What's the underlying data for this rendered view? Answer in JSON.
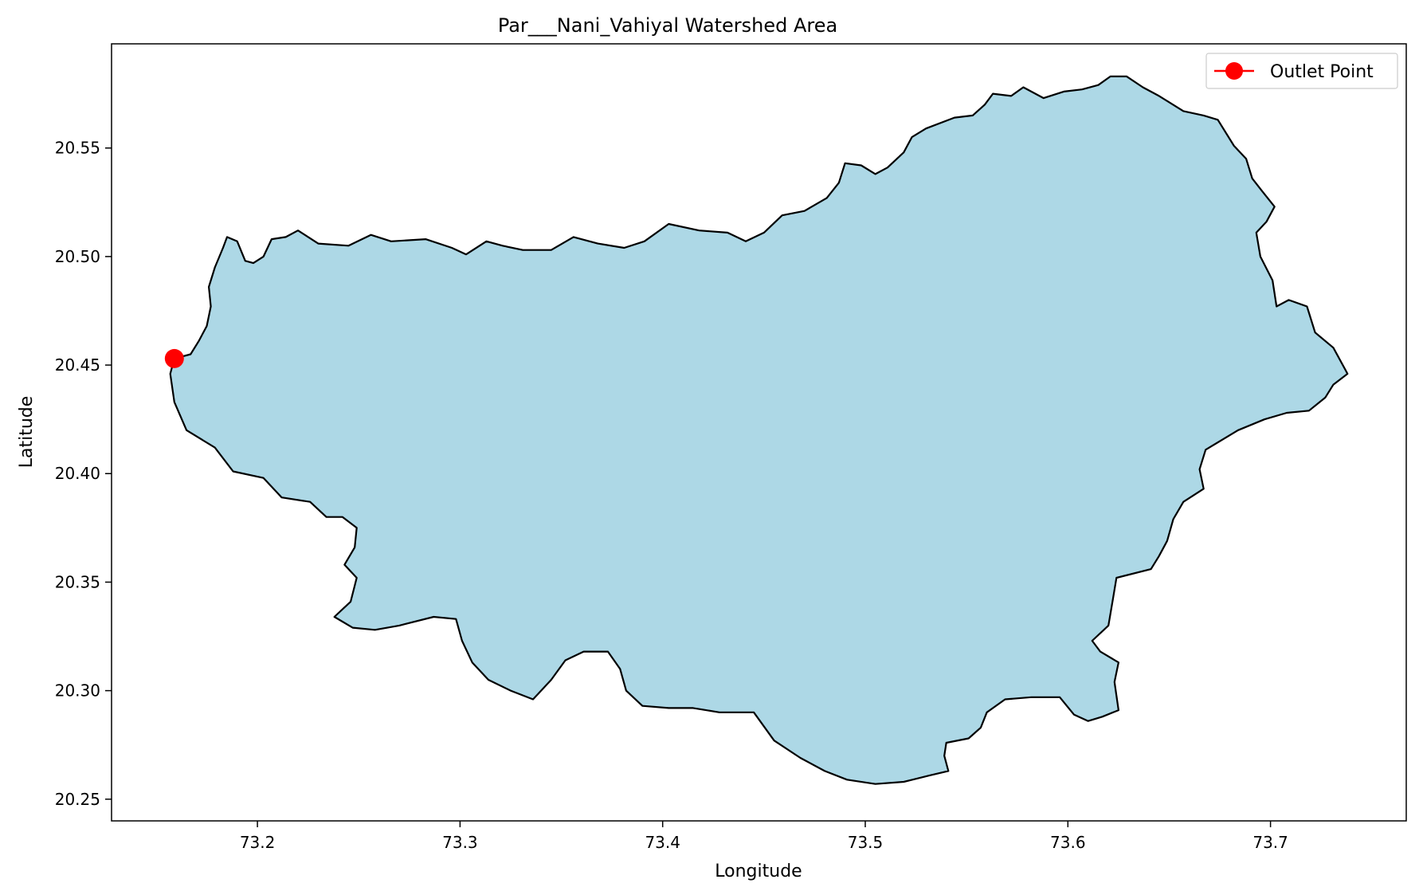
{
  "chart_data": {
    "type": "map",
    "title": "Par___Nani_Vahiyal Watershed Area",
    "xlabel": "Longitude",
    "ylabel": "Latitude",
    "xlim": [
      73.128,
      73.767
    ],
    "ylim": [
      20.24,
      20.598
    ],
    "xticks": [
      73.2,
      73.3,
      73.4,
      73.5,
      73.6,
      73.7
    ],
    "xtick_labels": [
      "73.2",
      "73.3",
      "73.4",
      "73.5",
      "73.6",
      "73.7"
    ],
    "yticks": [
      20.25,
      20.3,
      20.35,
      20.4,
      20.45,
      20.5,
      20.55
    ],
    "ytick_labels": [
      "20.25",
      "20.30",
      "20.35",
      "20.40",
      "20.45",
      "20.50",
      "20.55"
    ],
    "grid": false,
    "legend_position": "top-right",
    "watershed": {
      "fill_color": "#add8e6",
      "edge_color": "#000000",
      "boundary": [
        [
          73.159,
          20.453
        ],
        [
          73.167,
          20.455
        ],
        [
          73.171,
          20.461
        ],
        [
          73.175,
          20.468
        ],
        [
          73.177,
          20.477
        ],
        [
          73.176,
          20.486
        ],
        [
          73.179,
          20.495
        ],
        [
          73.183,
          20.504
        ],
        [
          73.185,
          20.509
        ],
        [
          73.19,
          20.507
        ],
        [
          73.194,
          20.498
        ],
        [
          73.198,
          20.497
        ],
        [
          73.203,
          20.5
        ],
        [
          73.207,
          20.508
        ],
        [
          73.214,
          20.509
        ],
        [
          73.22,
          20.512
        ],
        [
          73.23,
          20.506
        ],
        [
          73.245,
          20.505
        ],
        [
          73.256,
          20.51
        ],
        [
          73.266,
          20.507
        ],
        [
          73.283,
          20.508
        ],
        [
          73.296,
          20.504
        ],
        [
          73.303,
          20.501
        ],
        [
          73.313,
          20.507
        ],
        [
          73.321,
          20.505
        ],
        [
          73.331,
          20.503
        ],
        [
          73.345,
          20.503
        ],
        [
          73.356,
          20.509
        ],
        [
          73.368,
          20.506
        ],
        [
          73.381,
          20.504
        ],
        [
          73.391,
          20.507
        ],
        [
          73.403,
          20.515
        ],
        [
          73.418,
          20.512
        ],
        [
          73.432,
          20.511
        ],
        [
          73.441,
          20.507
        ],
        [
          73.45,
          20.511
        ],
        [
          73.459,
          20.519
        ],
        [
          73.47,
          20.521
        ],
        [
          73.481,
          20.527
        ],
        [
          73.487,
          20.534
        ],
        [
          73.49,
          20.543
        ],
        [
          73.498,
          20.542
        ],
        [
          73.505,
          20.538
        ],
        [
          73.511,
          20.541
        ],
        [
          73.519,
          20.548
        ],
        [
          73.523,
          20.555
        ],
        [
          73.53,
          20.559
        ],
        [
          73.544,
          20.564
        ],
        [
          73.553,
          20.565
        ],
        [
          73.559,
          20.57
        ],
        [
          73.563,
          20.575
        ],
        [
          73.572,
          20.574
        ],
        [
          73.578,
          20.578
        ],
        [
          73.588,
          20.573
        ],
        [
          73.598,
          20.576
        ],
        [
          73.607,
          20.577
        ],
        [
          73.615,
          20.579
        ],
        [
          73.621,
          20.583
        ],
        [
          73.629,
          20.583
        ],
        [
          73.637,
          20.578
        ],
        [
          73.645,
          20.574
        ],
        [
          73.657,
          20.567
        ],
        [
          73.667,
          20.565
        ],
        [
          73.674,
          20.563
        ],
        [
          73.682,
          20.551
        ],
        [
          73.688,
          20.545
        ],
        [
          73.691,
          20.536
        ],
        [
          73.696,
          20.53
        ],
        [
          73.702,
          20.523
        ],
        [
          73.698,
          20.516
        ],
        [
          73.693,
          20.511
        ],
        [
          73.695,
          20.5
        ],
        [
          73.701,
          20.489
        ],
        [
          73.703,
          20.477
        ],
        [
          73.709,
          20.48
        ],
        [
          73.718,
          20.477
        ],
        [
          73.722,
          20.465
        ],
        [
          73.731,
          20.458
        ],
        [
          73.738,
          20.446
        ],
        [
          73.731,
          20.441
        ],
        [
          73.727,
          20.435
        ],
        [
          73.719,
          20.429
        ],
        [
          73.708,
          20.428
        ],
        [
          73.697,
          20.425
        ],
        [
          73.684,
          20.42
        ],
        [
          73.668,
          20.411
        ],
        [
          73.665,
          20.402
        ],
        [
          73.667,
          20.393
        ],
        [
          73.657,
          20.387
        ],
        [
          73.652,
          20.379
        ],
        [
          73.649,
          20.369
        ],
        [
          73.645,
          20.362
        ],
        [
          73.641,
          20.356
        ],
        [
          73.624,
          20.352
        ],
        [
          73.622,
          20.341
        ],
        [
          73.62,
          20.33
        ],
        [
          73.612,
          20.323
        ],
        [
          73.616,
          20.318
        ],
        [
          73.625,
          20.313
        ],
        [
          73.623,
          20.304
        ],
        [
          73.625,
          20.291
        ],
        [
          73.617,
          20.288
        ],
        [
          73.61,
          20.286
        ],
        [
          73.603,
          20.289
        ],
        [
          73.596,
          20.297
        ],
        [
          73.582,
          20.297
        ],
        [
          73.569,
          20.296
        ],
        [
          73.56,
          20.29
        ],
        [
          73.557,
          20.283
        ],
        [
          73.551,
          20.278
        ],
        [
          73.54,
          20.276
        ],
        [
          73.539,
          20.27
        ],
        [
          73.541,
          20.263
        ],
        [
          73.532,
          20.261
        ],
        [
          73.519,
          20.258
        ],
        [
          73.505,
          20.257
        ],
        [
          73.491,
          20.259
        ],
        [
          73.48,
          20.263
        ],
        [
          73.468,
          20.269
        ],
        [
          73.455,
          20.277
        ],
        [
          73.445,
          20.29
        ],
        [
          73.428,
          20.29
        ],
        [
          73.415,
          20.292
        ],
        [
          73.403,
          20.292
        ],
        [
          73.39,
          20.293
        ],
        [
          73.382,
          20.3
        ],
        [
          73.379,
          20.31
        ],
        [
          73.373,
          20.318
        ],
        [
          73.361,
          20.318
        ],
        [
          73.352,
          20.314
        ],
        [
          73.345,
          20.305
        ],
        [
          73.336,
          20.296
        ],
        [
          73.325,
          20.3
        ],
        [
          73.314,
          20.305
        ],
        [
          73.306,
          20.313
        ],
        [
          73.301,
          20.323
        ],
        [
          73.298,
          20.333
        ],
        [
          73.287,
          20.334
        ],
        [
          73.27,
          20.33
        ],
        [
          73.258,
          20.328
        ],
        [
          73.247,
          20.329
        ],
        [
          73.238,
          20.334
        ],
        [
          73.246,
          20.341
        ],
        [
          73.249,
          20.352
        ],
        [
          73.243,
          20.358
        ],
        [
          73.248,
          20.366
        ],
        [
          73.249,
          20.375
        ],
        [
          73.242,
          20.38
        ],
        [
          73.234,
          20.38
        ],
        [
          73.226,
          20.387
        ],
        [
          73.212,
          20.389
        ],
        [
          73.203,
          20.398
        ],
        [
          73.188,
          20.401
        ],
        [
          73.179,
          20.412
        ],
        [
          73.165,
          20.42
        ],
        [
          73.159,
          20.433
        ],
        [
          73.157,
          20.446
        ],
        [
          73.159,
          20.453
        ]
      ]
    },
    "outlet": {
      "label": "Outlet Point",
      "lon": 73.159,
      "lat": 20.453,
      "color": "#ff0000"
    }
  }
}
